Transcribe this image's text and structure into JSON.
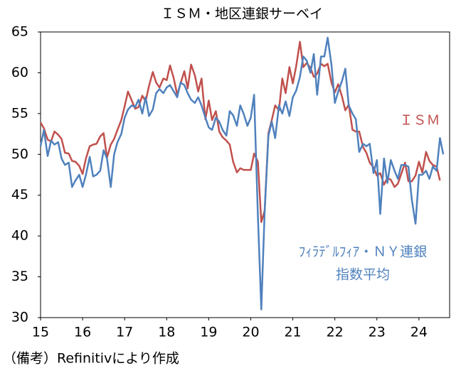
{
  "chart_data": {
    "type": "line",
    "title": "ＩＳＭ・地区連銀サーベイ",
    "footnote": "（備考）Refinitivにより作成",
    "x": [
      15,
      15.08,
      15.17,
      15.25,
      15.33,
      15.42,
      15.5,
      15.58,
      15.67,
      15.75,
      15.83,
      15.92,
      16,
      16.08,
      16.17,
      16.25,
      16.33,
      16.42,
      16.5,
      16.58,
      16.67,
      16.75,
      16.83,
      16.92,
      17,
      17.08,
      17.17,
      17.25,
      17.33,
      17.42,
      17.5,
      17.58,
      17.67,
      17.75,
      17.83,
      17.92,
      18,
      18.08,
      18.17,
      18.25,
      18.33,
      18.42,
      18.5,
      18.58,
      18.67,
      18.75,
      18.83,
      18.92,
      19,
      19.08,
      19.17,
      19.25,
      19.33,
      19.42,
      19.5,
      19.58,
      19.67,
      19.75,
      19.83,
      19.92,
      20,
      20.08,
      20.17,
      20.25,
      20.33,
      20.42,
      20.5,
      20.58,
      20.67,
      20.75,
      20.83,
      20.92,
      21,
      21.08,
      21.17,
      21.25,
      21.33,
      21.42,
      21.5,
      21.58,
      21.67,
      21.75,
      21.83,
      21.92,
      22,
      22.08,
      22.17,
      22.25,
      22.33,
      22.42,
      22.5,
      22.58,
      22.67,
      22.75,
      22.83,
      22.92,
      23,
      23.08,
      23.17,
      23.25,
      23.33,
      23.42,
      23.5,
      23.58,
      23.67,
      23.75,
      23.83,
      23.92,
      24,
      24.08,
      24.17,
      24.25,
      24.33,
      24.42,
      24.5,
      24.58
    ],
    "series": [
      {
        "name": [
          "ＩＳＭ"
        ],
        "color": "#c0504d",
        "values": [
          53.9,
          53.2,
          51.8,
          51.6,
          52.8,
          52.4,
          51.9,
          50.2,
          50.1,
          49.2,
          49.1,
          48.6,
          47.6,
          49.5,
          51,
          51.2,
          51.3,
          52.2,
          52.6,
          49.6,
          51.2,
          51.9,
          53,
          54.2,
          55.9,
          57.7,
          56.6,
          55.6,
          55.8,
          57.2,
          56.5,
          58.4,
          60.1,
          58.8,
          58.2,
          59.3,
          59.1,
          60.9,
          59.3,
          57.3,
          58.7,
          60.2,
          58.1,
          61,
          59.7,
          57.7,
          59.3,
          54.3,
          56.6,
          54.2,
          55.3,
          52.8,
          52.1,
          51.7,
          51.2,
          49.1,
          47.8,
          48.3,
          48.1,
          48.1,
          48.1,
          50.1,
          49.1,
          41.7,
          43.1,
          52.6,
          54.2,
          56,
          55.4,
          59.3,
          57.5,
          60.7,
          58.7,
          60.8,
          63.8,
          60.7,
          61.2,
          60.6,
          59.5,
          59.9,
          61.1,
          60.8,
          61.1,
          58.8,
          57.6,
          58.6,
          57.1,
          55.4,
          56.1,
          53,
          52.8,
          52.8,
          50.9,
          50.2,
          49,
          48.4,
          47.4,
          47.7,
          46.3,
          47.1,
          46.9,
          46,
          46.4,
          47.6,
          49,
          46.7,
          46.7,
          47.4,
          49.1,
          47.8,
          50.3,
          49.2,
          48.7,
          48.5,
          46.8,
          null
        ]
      },
      {
        "name": [
          "ﾌｨﾗﾃﾞﾙﾌｨｱ・ＮＹ連銀",
          "指数平均"
        ],
        "color": "#4f81bd",
        "values": [
          51,
          53,
          49.8,
          51.7,
          51.2,
          51.5,
          49.5,
          48.7,
          49,
          46,
          46.8,
          47.5,
          46,
          47.5,
          49.7,
          47.3,
          47.5,
          48,
          50.5,
          49.5,
          46,
          50,
          51.5,
          52.5,
          54.5,
          55.5,
          56,
          55.8,
          56.7,
          55,
          57,
          54.7,
          55.5,
          57.5,
          58,
          57.5,
          58.2,
          58.5,
          57.7,
          57,
          58.8,
          58.5,
          57.5,
          56.7,
          56.3,
          57,
          56,
          54.5,
          53.3,
          53,
          54.5,
          54,
          53,
          52.3,
          55.3,
          54.8,
          53.5,
          56,
          55,
          53.5,
          54.5,
          57.3,
          42.5,
          31,
          43,
          52.3,
          54,
          52,
          56,
          55,
          56.5,
          54.7,
          57,
          57.8,
          59.5,
          62,
          61.5,
          60,
          62.3,
          57.3,
          62,
          62,
          64.3,
          61,
          56.3,
          57.7,
          59,
          60.5,
          56,
          55,
          54.3,
          50.3,
          51.3,
          51,
          51.3,
          47.7,
          49.3,
          42.7,
          49.5,
          46.5,
          49.3,
          48,
          47,
          48.7,
          48.7,
          48.5,
          44.5,
          41.5,
          47.5,
          47.5,
          48,
          47,
          48.5,
          48,
          52,
          50
        ]
      }
    ],
    "xlim": [
      15,
      24.73
    ],
    "xticks": [
      15,
      16,
      17,
      18,
      19,
      20,
      21,
      22,
      23,
      24
    ],
    "ylim": [
      30,
      65
    ],
    "yticks": [
      30,
      35,
      40,
      45,
      50,
      55,
      60,
      65
    ]
  }
}
